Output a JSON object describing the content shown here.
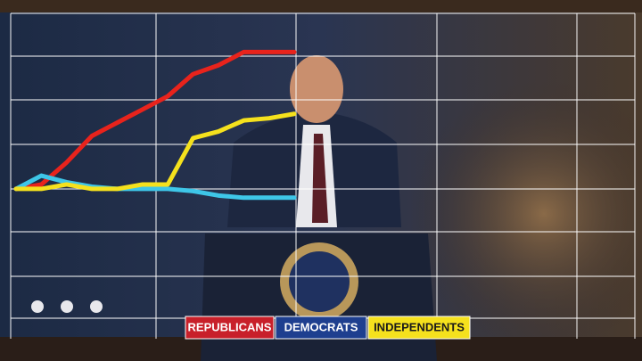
{
  "chart_data": {
    "type": "line",
    "categories": [
      null,
      null,
      null,
      null,
      null,
      null,
      null,
      null,
      null,
      null,
      null,
      null
    ],
    "series": [
      {
        "name": "REPUBLICANS",
        "color": "#e8231c",
        "values": [
          0,
          0.1,
          0.6,
          1.2,
          1.5,
          1.8,
          2.1,
          2.6,
          2.8,
          3.1,
          3.1,
          3.1
        ]
      },
      {
        "name": "DEMOCRATS",
        "color": "#3ec6e8",
        "values": [
          0,
          0.3,
          0.15,
          0.05,
          0,
          0,
          0,
          -0.05,
          -0.15,
          -0.2,
          -0.2,
          -0.2
        ]
      },
      {
        "name": "INDEPENDENTS",
        "color": "#f5e11d",
        "values": [
          0,
          0,
          0.1,
          0,
          0,
          0.1,
          0.1,
          1.15,
          1.3,
          1.55,
          1.6,
          1.7
        ]
      }
    ],
    "legend_backgrounds": [
      "#c8202a",
      "#1e3f8f",
      "#f5e11d"
    ],
    "ylim": [
      -3.9,
      4.28
    ]
  }
}
